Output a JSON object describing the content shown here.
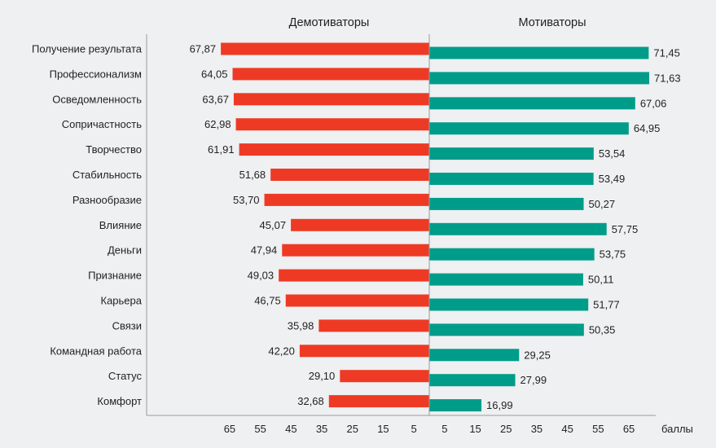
{
  "chart_data": {
    "type": "bar",
    "orientation": "horizontal-diverging",
    "headers": {
      "left": "Демотиваторы",
      "right": "Мотиваторы"
    },
    "units_label": "баллы",
    "categories": [
      "Получение результата",
      "Профессионализм",
      "Осведомленность",
      "Сопричастность",
      "Творчество",
      "Стабильность",
      "Разнообразие",
      "Влияние",
      "Деньги",
      "Признание",
      "Карьера",
      "Связи",
      "Командная работа",
      "Статус",
      "Комфорт"
    ],
    "series": [
      {
        "name": "Демотиваторы",
        "side": "left",
        "color": "#ee3a24",
        "values": [
          67.87,
          64.05,
          63.67,
          62.98,
          61.91,
          51.68,
          53.7,
          45.07,
          47.94,
          49.03,
          46.75,
          35.98,
          42.2,
          29.1,
          32.68
        ],
        "labels": [
          "67,87",
          "64,05",
          "63,67",
          "62,98",
          "61,91",
          "51,68",
          "53,70",
          "45,07",
          "47,94",
          "49,03",
          "46,75",
          "35,98",
          "42,20",
          "29,10",
          "32,68"
        ]
      },
      {
        "name": "Мотиваторы",
        "side": "right",
        "color": "#009c8a",
        "values": [
          71.45,
          71.63,
          67.06,
          64.95,
          53.54,
          53.49,
          50.27,
          57.75,
          53.75,
          50.11,
          51.77,
          50.35,
          29.25,
          27.99,
          16.99
        ],
        "labels": [
          "71,45",
          "71,63",
          "67,06",
          "64,95",
          "53,54",
          "53,49",
          "50,27",
          "57,75",
          "53,75",
          "50,11",
          "51,77",
          "50,35",
          "29,25",
          "27,99",
          "16,99"
        ]
      }
    ],
    "x_ticks_left": [
      "65",
      "55",
      "45",
      "35",
      "25",
      "15",
      "5"
    ],
    "x_ticks_right": [
      "5",
      "15",
      "25",
      "35",
      "45",
      "55",
      "65"
    ],
    "tick_values": [
      65,
      55,
      45,
      35,
      25,
      15,
      5
    ],
    "xlim": [
      0,
      75
    ],
    "grid": false
  }
}
